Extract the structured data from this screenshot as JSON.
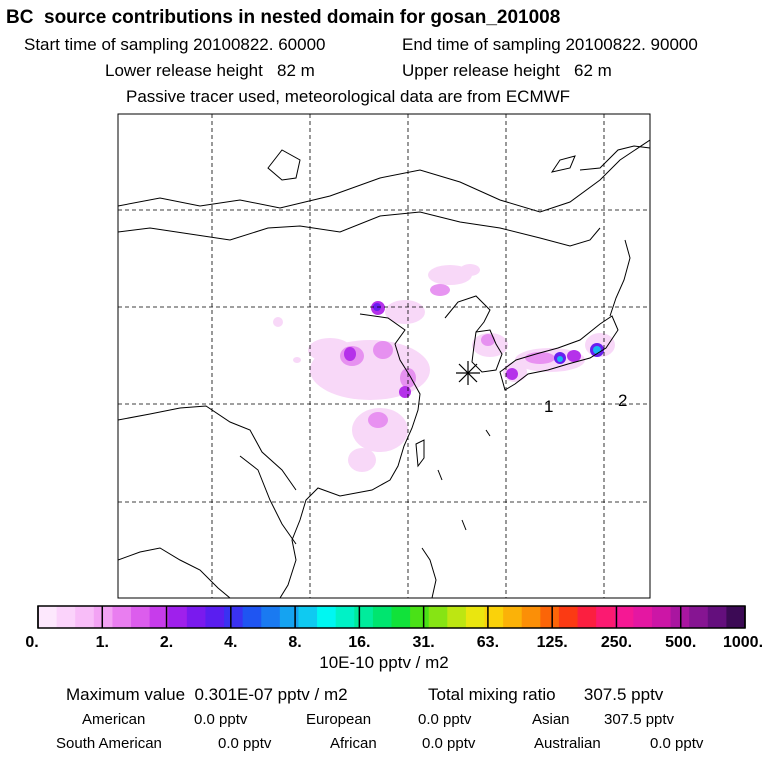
{
  "header": {
    "title": "BC  source contributions in nested domain for gosan_201008",
    "start_time": "Start time of sampling 20100822. 60000",
    "end_time": "End time of sampling 20100822. 90000",
    "lower_release": "Lower release height   82 m",
    "upper_release": "Upper release height   62 m",
    "tracer_info": "Passive tracer used, meteorological data are from ECMWF"
  },
  "map": {
    "receptor_marker": "gosan-receptor",
    "labels": {
      "point1": "1",
      "point2": "2"
    }
  },
  "colorbar": {
    "colors": [
      "#fde8fd",
      "#fbd3fb",
      "#f8bdf8",
      "#f3a3f4",
      "#e97ef0",
      "#dc5ded",
      "#c73ceb",
      "#9f20ec",
      "#7a1aee",
      "#5a1ef0",
      "#3a32f2",
      "#1f55f2",
      "#1a7af1",
      "#15a3f1",
      "#0fcaf1",
      "#00f7f2",
      "#00f2c6",
      "#00ec9c",
      "#00e56f",
      "#11e23a",
      "#4ae117",
      "#86e414",
      "#bde612",
      "#eae60f",
      "#fad20a",
      "#fbb208",
      "#fb8f07",
      "#fb6508",
      "#fb3a13",
      "#fb1f40",
      "#fb1a71",
      "#f51894",
      "#e417a2",
      "#cc16a6",
      "#a916a0",
      "#861592",
      "#640f7d",
      "#3c0a55"
    ],
    "ticks": [
      "0.",
      "1.",
      "2.",
      "4.",
      "8.",
      "16.",
      "31.",
      "63.",
      "125.",
      "250.",
      "500.",
      "1000."
    ],
    "unit_label": "10E-10 pptv / m2"
  },
  "stats": {
    "max_label": "Maximum value  0.301E-07 pptv / m2",
    "total_label": "Total mixing ratio      307.5 pptv",
    "american_label": "American",
    "american_value": "0.0 pptv",
    "european_label": "European",
    "european_value": "0.0 pptv",
    "asian_label": "Asian",
    "asian_value": "307.5 pptv",
    "south_american_label": "South American",
    "south_american_value": "0.0 pptv",
    "african_label": "African",
    "african_value": "0.0 pptv",
    "australian_label": "Australian",
    "australian_value": "0.0 pptv"
  }
}
